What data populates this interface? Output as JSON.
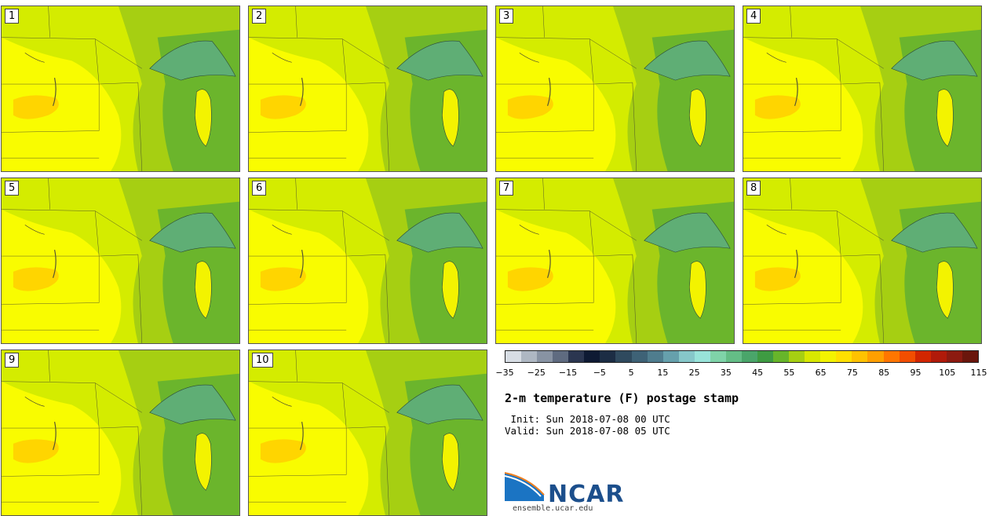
{
  "stamps": [
    {
      "label": "1"
    },
    {
      "label": "2"
    },
    {
      "label": "3"
    },
    {
      "label": "4"
    },
    {
      "label": "5"
    },
    {
      "label": "6"
    },
    {
      "label": "7"
    },
    {
      "label": "8"
    },
    {
      "label": "9"
    },
    {
      "label": "10"
    }
  ],
  "colorbar": {
    "colors": [
      "#d7dde4",
      "#aeb7c2",
      "#8893a3",
      "#5f6b80",
      "#2b3650",
      "#0e1a33",
      "#1c2d44",
      "#2f4a5e",
      "#3e6276",
      "#4f7d8e",
      "#66a0ac",
      "#86c7c9",
      "#98e3d9",
      "#7fd3a8",
      "#64bd86",
      "#4aa56a",
      "#3e9b42",
      "#67b52a",
      "#a6cf12",
      "#d8e800",
      "#f3f300",
      "#ffe000",
      "#ffc200",
      "#ff9f00",
      "#ff7600",
      "#f24e00",
      "#d22600",
      "#b01a0a",
      "#8c1a10",
      "#6a160c"
    ],
    "tick_labels": [
      "−35",
      "−25",
      "−15",
      "−5",
      "5",
      "15",
      "25",
      "35",
      "45",
      "55",
      "65",
      "75",
      "85",
      "95",
      "105",
      "115"
    ]
  },
  "title": "2-m temperature (F) postage stamp",
  "init": " Init: Sun 2018-07-08 00 UTC",
  "valid": "Valid: Sun 2018-07-08 05 UTC",
  "logo": {
    "text": "NCAR",
    "url": "ensemble.ucar.edu"
  },
  "map_colors": {
    "base": "#d4ec00",
    "warm": "#ffff00",
    "hot": "#ffd000",
    "cool": "#a6cf12",
    "cooler": "#6bb52c",
    "lake": "#5fae75"
  }
}
